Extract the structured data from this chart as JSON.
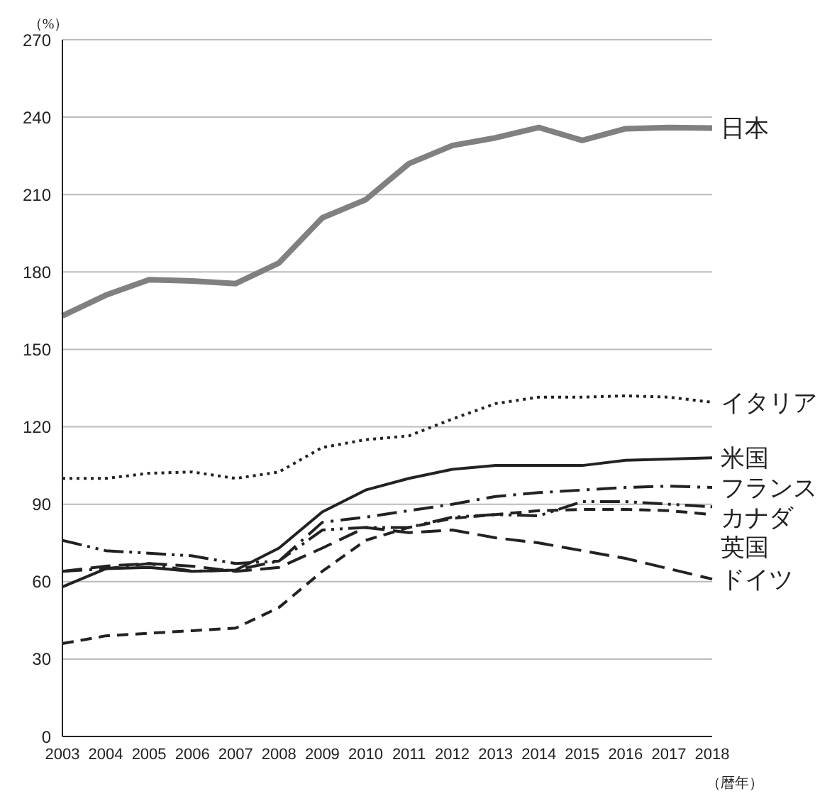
{
  "chart_data": {
    "type": "line",
    "ylabel": "（%）",
    "xlabel": "（暦年）",
    "categories": [
      "2003",
      "2004",
      "2005",
      "2006",
      "2007",
      "2008",
      "2009",
      "2010",
      "2011",
      "2012",
      "2013",
      "2014",
      "2015",
      "2016",
      "2017",
      "2018"
    ],
    "series": [
      {
        "name": "日本",
        "color": "#808080",
        "line_style": "solid",
        "values": [
          163,
          171,
          177,
          176.5,
          175.5,
          183.5,
          201,
          208,
          222,
          229,
          232,
          236,
          231,
          235.5,
          236,
          235.8
        ]
      },
      {
        "name": "イタリア",
        "color": "#222222",
        "line_style": "dotted",
        "values": [
          100,
          100,
          102,
          102.5,
          100,
          102.5,
          112,
          115,
          116.5,
          123,
          129,
          131.5,
          131.5,
          132,
          131.5,
          129.5
        ]
      },
      {
        "name": "米国",
        "color": "#222222",
        "line_style": "solid",
        "values": [
          58,
          65,
          65.5,
          64,
          64.5,
          73,
          87,
          95.5,
          100,
          103.5,
          105,
          105,
          105,
          107,
          107.5,
          108
        ]
      },
      {
        "name": "フランス",
        "color": "#222222",
        "line_style": "dashdot",
        "values": [
          64,
          65,
          67,
          64,
          64.5,
          68,
          83,
          85,
          87.5,
          90,
          93,
          94.5,
          95.5,
          96.5,
          97,
          96.5
        ]
      },
      {
        "name": "カナダ",
        "color": "#222222",
        "line_style": "dashdotdot",
        "values": [
          76,
          72,
          71,
          70,
          67,
          68,
          80,
          81,
          81,
          85,
          86,
          85.5,
          91,
          91,
          90,
          89
        ]
      },
      {
        "name": "英国",
        "color": "#222222",
        "line_style": "dashed",
        "values": [
          36,
          39,
          40,
          41,
          42,
          50,
          64,
          76,
          81,
          84.5,
          86,
          87.5,
          88,
          88,
          87.5,
          86
        ]
      },
      {
        "name": "ドイツ",
        "color": "#222222",
        "line_style": "longdash",
        "values": [
          64,
          66,
          67,
          66,
          64,
          65.5,
          73,
          81,
          79,
          80,
          77,
          75,
          72,
          69,
          65,
          61
        ]
      }
    ],
    "ylim": [
      0,
      270
    ],
    "yticks": [
      0,
      30,
      60,
      90,
      120,
      150,
      180,
      210,
      240,
      270
    ],
    "grid": "y"
  }
}
